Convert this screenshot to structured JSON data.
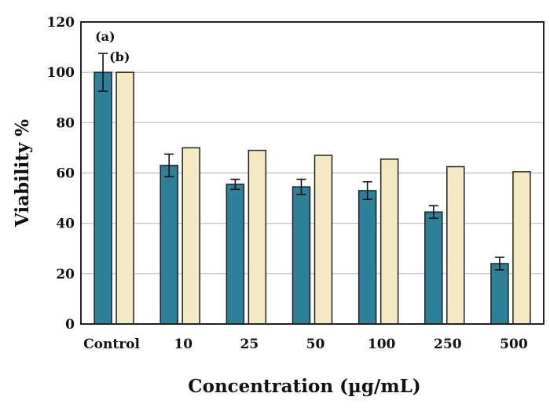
{
  "chart_data": {
    "type": "bar",
    "title": "",
    "xlabel": "Concentration (µg/mL)",
    "ylabel": "Viability %",
    "categories": [
      "Control",
      "10",
      "25",
      "50",
      "100",
      "250",
      "500"
    ],
    "ylim": [
      0,
      120
    ],
    "yticks": [
      0,
      20,
      40,
      60,
      80,
      100,
      120
    ],
    "grid": true,
    "legend": "none",
    "series": [
      {
        "name": "(a)",
        "color": "#2e7f98",
        "values": [
          100,
          63,
          55.5,
          54.5,
          53,
          44.5,
          24
        ],
        "errors": [
          7.5,
          4.5,
          2,
          3,
          3.5,
          2.5,
          2.5
        ]
      },
      {
        "name": "(b)",
        "color": "#f3e9c2",
        "values": [
          100,
          70,
          69,
          67,
          65.5,
          62.5,
          60.5
        ]
      }
    ]
  }
}
